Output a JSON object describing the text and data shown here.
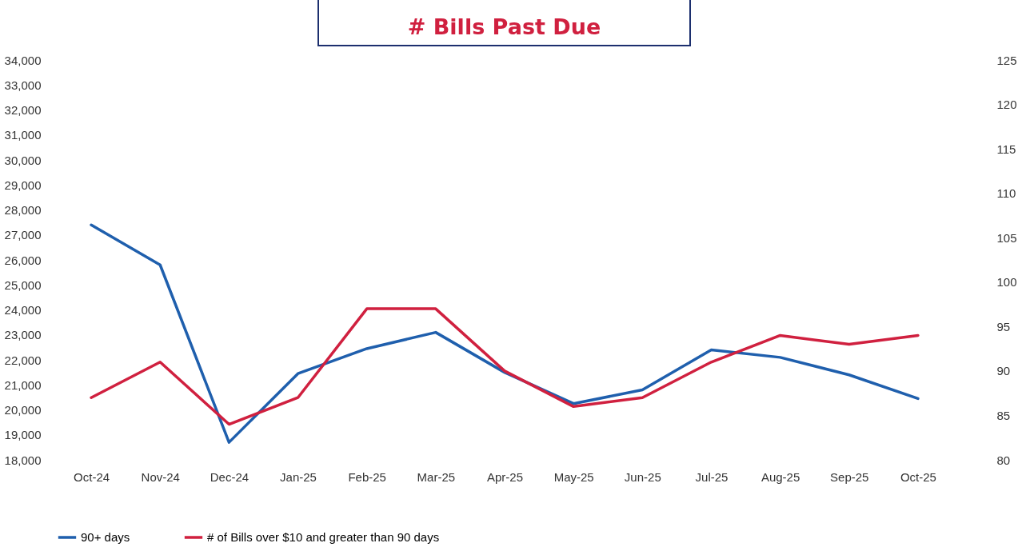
{
  "chart_data": {
    "type": "line",
    "title": "# Bills Past Due",
    "categories": [
      "Oct-24",
      "Nov-24",
      "Dec-24",
      "Jan-25",
      "Feb-25",
      "Mar-25",
      "Apr-25",
      "May-25",
      "Jun-25",
      "Jul-25",
      "Aug-25",
      "Sep-25",
      "Oct-25"
    ],
    "series": [
      {
        "name": "90+ days",
        "color": "#1f5fad",
        "values": [
          27400,
          25800,
          18700,
          21450,
          22450,
          23100,
          21500,
          20250,
          20800,
          22400,
          22100,
          21400,
          20450
        ]
      },
      {
        "name": "# of Bills over $10 and greater than 90 days",
        "color": "#d0203f",
        "axis": "y2",
        "values": [
          87,
          91,
          84,
          87,
          97,
          97,
          90,
          86,
          87,
          91,
          94,
          93,
          94
        ]
      }
    ],
    "ylim": [
      18000,
      34000
    ],
    "yticks": [
      {
        "value": 18000,
        "label": "18,000"
      },
      {
        "value": 19000,
        "label": "19,000"
      },
      {
        "value": 20000,
        "label": "20,000"
      },
      {
        "value": 21000,
        "label": "21,000"
      },
      {
        "value": 22000,
        "label": "22,000"
      },
      {
        "value": 23000,
        "label": "23,000"
      },
      {
        "value": 24000,
        "label": "24,000"
      },
      {
        "value": 25000,
        "label": "25,000"
      },
      {
        "value": 26000,
        "label": "26,000"
      },
      {
        "value": 27000,
        "label": "27,000"
      },
      {
        "value": 28000,
        "label": "28,000"
      },
      {
        "value": 29000,
        "label": "29,000"
      },
      {
        "value": 30000,
        "label": "30,000"
      },
      {
        "value": 31000,
        "label": "31,000"
      },
      {
        "value": 32000,
        "label": "32,000"
      },
      {
        "value": 33000,
        "label": "33,000"
      },
      {
        "value": 34000,
        "label": "34,000"
      }
    ],
    "y2lim": [
      80,
      125
    ],
    "y2ticks": [
      80,
      85,
      90,
      95,
      100,
      105,
      110,
      115,
      120,
      125
    ],
    "legend": "bottom",
    "grid": false,
    "marker": "none",
    "line_style": "solid"
  }
}
